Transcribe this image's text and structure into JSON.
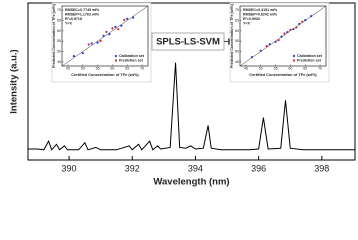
{
  "chart_data": [
    {
      "type": "line",
      "xlabel": "Wavelength (nm)",
      "ylabel": "Intensity (a.u.)",
      "annotation": "SPLS-LS-SVM",
      "xlim": [
        388.7,
        399.05
      ],
      "ylim": [
        0,
        1
      ],
      "xticks": [
        390,
        392,
        394,
        396,
        398
      ],
      "series": [
        {
          "name": null,
          "color": "#000000",
          "x": [
            388.7,
            389.0,
            389.2,
            389.35,
            389.45,
            389.6,
            389.7,
            389.85,
            389.95,
            390.3,
            390.5,
            390.6,
            390.85,
            391.0,
            391.5,
            391.9,
            392.0,
            392.2,
            392.3,
            392.55,
            392.65,
            392.8,
            392.9,
            393.2,
            393.37,
            393.5,
            393.7,
            393.85,
            394.0,
            394.25,
            394.4,
            394.5,
            394.8,
            395.3,
            395.7,
            396.0,
            396.15,
            396.3,
            396.7,
            396.85,
            397.0,
            397.4,
            398.0,
            398.5,
            399.05
          ],
          "values": [
            0.07,
            0.07,
            0.065,
            0.12,
            0.065,
            0.1,
            0.065,
            0.09,
            0.065,
            0.065,
            0.11,
            0.065,
            0.08,
            0.065,
            0.065,
            0.09,
            0.065,
            0.1,
            0.065,
            0.12,
            0.065,
            0.09,
            0.07,
            0.08,
            0.62,
            0.08,
            0.075,
            0.09,
            0.07,
            0.075,
            0.22,
            0.075,
            0.065,
            0.065,
            0.065,
            0.07,
            0.27,
            0.07,
            0.075,
            0.38,
            0.075,
            0.065,
            0.065,
            0.065,
            0.065
          ]
        }
      ]
    },
    {
      "type": "scatter",
      "xlabel": "Certified Concentration of TFe (wt%)",
      "ylabel": "Predicted Concentration of TFe (wt%)",
      "annotations": [
        "RMSEC=0.7749 wt%",
        "RMSEP=1.1763 wt%",
        "R²=0.9718",
        "Y=X"
      ],
      "xlim": [
        43,
        72
      ],
      "ylim": [
        43,
        72
      ],
      "xticks": [
        45,
        50,
        55,
        60,
        65,
        70
      ],
      "yticks": [
        45,
        50,
        55,
        60,
        65,
        70
      ],
      "series": [
        {
          "name": "Calibration set",
          "color": "#1f3fd0",
          "x": [
            47,
            50,
            53,
            55,
            57,
            59,
            61,
            63,
            65,
            67
          ],
          "values": [
            47.8,
            49.2,
            53.9,
            54.3,
            57.6,
            58.4,
            61.9,
            62.5,
            65.8,
            66.4
          ]
        },
        {
          "name": "Prediction set",
          "color": "#e0202a",
          "x": [
            52,
            56,
            58,
            60,
            62,
            64
          ],
          "values": [
            53.4,
            55.1,
            59.5,
            61.2,
            60.8,
            65.3
          ]
        }
      ]
    },
    {
      "type": "scatter",
      "xlabel": "Certified Concentration of TFe (wt%)",
      "ylabel": "Predicted Concentration of TFe (wt%)",
      "annotations": [
        "RMSEC=0.3191 wt%",
        "RMSEP=0.6242 wt%",
        "R²=0.9933",
        "Y=X"
      ],
      "xlim": [
        43,
        72
      ],
      "ylim": [
        43,
        72
      ],
      "xticks": [
        45,
        50,
        55,
        60,
        65,
        70
      ],
      "yticks": [
        45,
        50,
        55,
        60,
        65,
        70
      ],
      "series": [
        {
          "name": "Calibration set",
          "color": "#1f3fd0",
          "x": [
            47,
            50,
            53,
            55,
            57,
            59,
            61,
            63,
            65,
            67
          ],
          "values": [
            47.3,
            50.4,
            53.5,
            54.7,
            57.2,
            59.4,
            60.8,
            63.3,
            65.2,
            67.1
          ]
        },
        {
          "name": "Prediction set",
          "color": "#e0202a",
          "x": [
            52,
            56,
            58,
            60,
            62,
            64
          ],
          "values": [
            52.6,
            55.5,
            58.7,
            60.5,
            61.6,
            64.4
          ]
        }
      ]
    }
  ]
}
